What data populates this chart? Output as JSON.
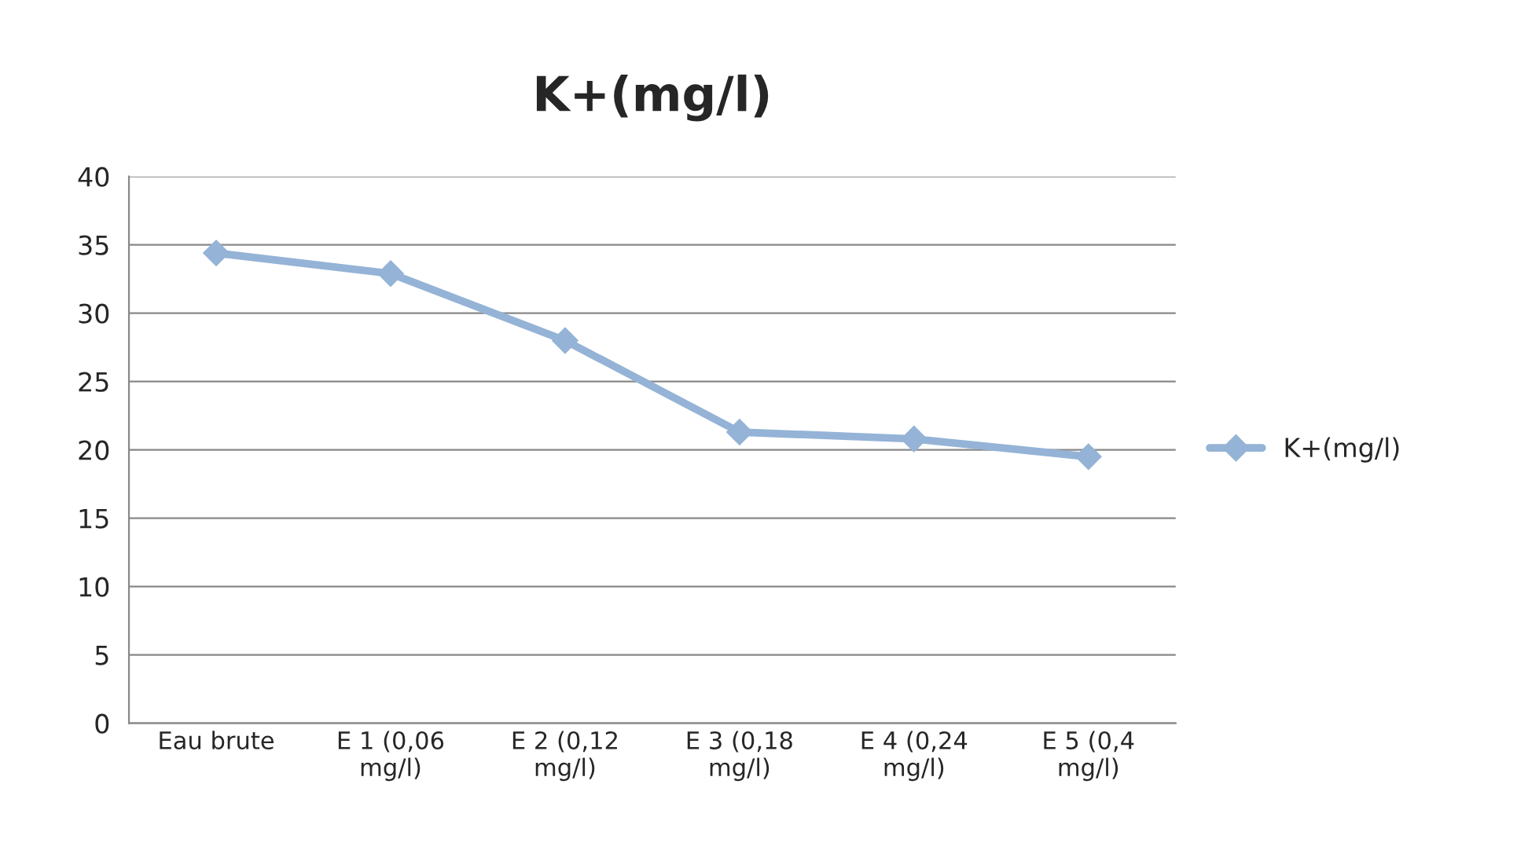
{
  "chart_data": {
    "type": "line",
    "title": "K+(mg/l)",
    "categories": [
      "Eau brute",
      "E 1 (0,06 mg/l)",
      "E 2 (0,12 mg/l)",
      "E 3 (0,18 mg/l)",
      "E 4 (0,24 mg/l)",
      "E 5 (0,4 mg/l)"
    ],
    "series": [
      {
        "name": "K+(mg/l)",
        "color": "#94b3d6",
        "values": [
          34.4,
          32.9,
          28.0,
          21.3,
          20.8,
          19.5
        ]
      }
    ],
    "ylim": [
      0,
      40
    ],
    "yticks": [
      0,
      5,
      10,
      15,
      20,
      25,
      30,
      35,
      40
    ],
    "grid": "y",
    "legend": "right",
    "marker": "diamond",
    "line_style": "solid"
  }
}
